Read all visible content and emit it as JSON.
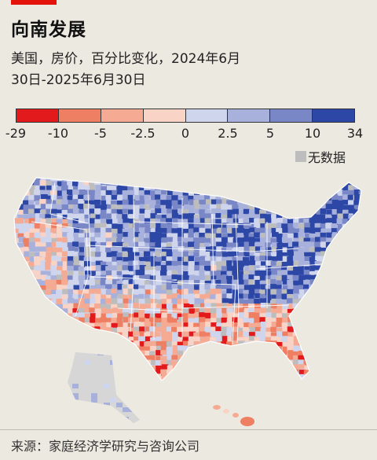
{
  "title": "向南发展",
  "subtitle_line1": "美国，房价，百分比变化，2024年6月",
  "subtitle_line2": "30日-2025年6月30日",
  "legend": {
    "colors": [
      "#e31a1c",
      "#ef7f63",
      "#f5ab93",
      "#f9d3c5",
      "#cfd5ec",
      "#a8b1dc",
      "#7a87c7",
      "#2d47a6"
    ],
    "labels": [
      "-29",
      "-10",
      "-5",
      "-2.5",
      "0",
      "2.5",
      "5",
      "10",
      "34"
    ],
    "no_data_label": "无数据",
    "no_data_color": "#bdbdbd"
  },
  "source": "来源：家庭经济学研究与咨询公司"
}
